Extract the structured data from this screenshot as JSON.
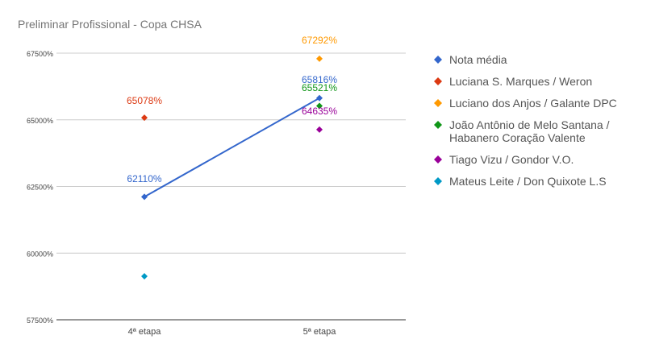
{
  "chart_data": {
    "type": "line",
    "title": "Preliminar Profissional - Copa CHSA",
    "categories": [
      "4ª etapa",
      "5ª etapa"
    ],
    "ylim": [
      57500,
      68500
    ],
    "yticks": [
      57500,
      60000,
      62500,
      65000,
      67500
    ],
    "ytick_suffix": "%",
    "grid": true,
    "legend_position": "right",
    "series": [
      {
        "name": "Nota média",
        "color": "#3366cc",
        "values": [
          62110,
          65816
        ],
        "labels": [
          "62110%",
          "65816%"
        ],
        "line": true
      },
      {
        "name": "Luciana S. Marques / Weron",
        "color": "#dc3912",
        "values": [
          65078,
          null
        ],
        "labels": [
          "65078%",
          null
        ],
        "line": false
      },
      {
        "name": "Luciano dos Anjos / Galante DPC",
        "color": "#ff9900",
        "values": [
          null,
          67292
        ],
        "labels": [
          null,
          "67292%"
        ],
        "line": false
      },
      {
        "name": "João Antônio de Melo Santana / Habanero Coração Valente",
        "legend_lines": [
          "João Antônio de Melo Santana /",
          "Habanero Coração Valente"
        ],
        "color": "#109618",
        "values": [
          null,
          65521
        ],
        "labels": [
          null,
          "65521%"
        ],
        "line": false
      },
      {
        "name": "Tiago Vizu / Gondor V.O.",
        "color": "#990099",
        "values": [
          null,
          64635
        ],
        "labels": [
          null,
          "64635%"
        ],
        "line": false
      },
      {
        "name": "Mateus Leite / Don Quixote L.S",
        "color": "#0099c6",
        "values": [
          59130,
          null
        ],
        "labels": [
          null,
          null
        ],
        "line": false
      }
    ]
  }
}
